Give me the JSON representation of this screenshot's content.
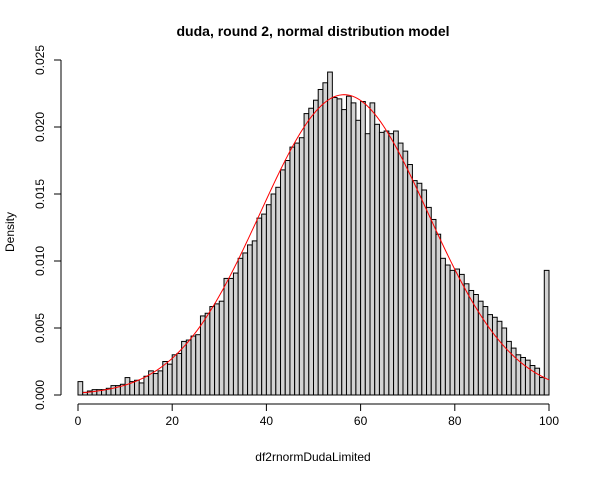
{
  "chart_data": {
    "type": "bar",
    "title": "duda, round 2, normal distribution model",
    "xlabel": "df2rnormDudaLimited",
    "ylabel": "Density",
    "xlim": [
      0,
      100
    ],
    "ylim": [
      0,
      0.025
    ],
    "x_ticks": [
      "0",
      "20",
      "40",
      "60",
      "80",
      "100"
    ],
    "y_ticks": [
      "0.000",
      "0.005",
      "0.010",
      "0.015",
      "0.020",
      "0.025"
    ],
    "bin_width": 1,
    "bin_start": 0,
    "bar_color": "#d3d3d3",
    "bar_edge_color": "#000000",
    "curve_color": "#ff0000",
    "curve_model": {
      "type": "normal",
      "mean": 56.5,
      "sd": 17.8,
      "x_range": [
        1,
        100
      ]
    },
    "densities": [
      0.001,
      0.0002,
      0.0003,
      0.0004,
      0.0004,
      0.0004,
      0.0005,
      0.0007,
      0.0007,
      0.0008,
      0.0013,
      0.001,
      0.0011,
      0.0009,
      0.0014,
      0.0018,
      0.0016,
      0.0018,
      0.0025,
      0.0023,
      0.003,
      0.0031,
      0.004,
      0.0041,
      0.0044,
      0.0045,
      0.0059,
      0.0061,
      0.0066,
      0.0068,
      0.007,
      0.0087,
      0.0087,
      0.0091,
      0.0102,
      0.0106,
      0.0112,
      0.0115,
      0.0132,
      0.0135,
      0.0142,
      0.015,
      0.0155,
      0.0168,
      0.0175,
      0.0185,
      0.0188,
      0.0192,
      0.021,
      0.0214,
      0.022,
      0.0228,
      0.0233,
      0.0241,
      0.0222,
      0.0221,
      0.0213,
      0.0223,
      0.0218,
      0.0205,
      0.0219,
      0.0195,
      0.0218,
      0.0202,
      0.0196,
      0.0197,
      0.0195,
      0.0197,
      0.0188,
      0.0182,
      0.0172,
      0.016,
      0.0158,
      0.0153,
      0.014,
      0.0131,
      0.012,
      0.0102,
      0.0097,
      0.0093,
      0.0094,
      0.009,
      0.0083,
      0.0078,
      0.0075,
      0.007,
      0.0066,
      0.006,
      0.0058,
      0.0055,
      0.005,
      0.004,
      0.0035,
      0.003,
      0.0028,
      0.0026,
      0.0022,
      0.002,
      0.0013,
      0.0093
    ]
  }
}
